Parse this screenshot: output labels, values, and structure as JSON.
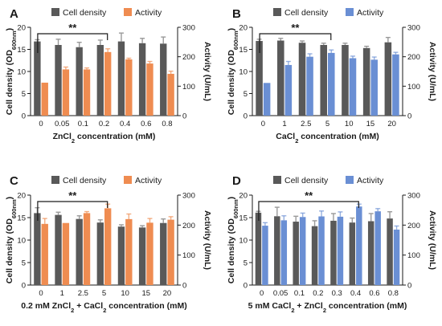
{
  "legend": {
    "cell_density": "Cell density",
    "activity": "Activity"
  },
  "colors": {
    "cell_density": "#595959",
    "activity_orange": "#ef8c51",
    "activity_blue": "#6a8fd4",
    "axis": "#1a1a1a"
  },
  "chart_data": [
    {
      "panel": "A",
      "type": "bar",
      "categories": [
        "0",
        "0.05",
        "0.1",
        "0.2",
        "0.4",
        "0.6",
        "0.8"
      ],
      "xlabel": "ZnCl2 concentration (mM)",
      "ylabel_left": "Cell density (OD600nm)",
      "ylabel_right": "Activity (U/mL)",
      "ylim_left": [
        0,
        20
      ],
      "ylim_right": [
        0,
        300
      ],
      "yticks_left": [
        "0",
        "5",
        "10",
        "15",
        "20"
      ],
      "yticks_right": [
        "0",
        "100",
        "200",
        "300"
      ],
      "activity_color": "#ef8c51",
      "significance": {
        "label": "**",
        "from": 0,
        "to": 3
      },
      "series": [
        {
          "name": "Cell density",
          "axis": "left",
          "values": [
            16.8,
            16.0,
            15.5,
            16.0,
            16.8,
            16.4,
            16.3
          ],
          "errors": [
            0.4,
            1.3,
            1.1,
            1.1,
            1.9,
            1.1,
            1.5
          ]
        },
        {
          "name": "Activity",
          "axis": "right",
          "values": [
            112,
            157,
            157,
            216,
            191,
            177,
            142
          ],
          "errors": [
            0,
            8,
            5,
            11,
            4,
            7,
            9
          ]
        }
      ]
    },
    {
      "panel": "B",
      "type": "bar",
      "categories": [
        "0",
        "1",
        "2.5",
        "5",
        "10",
        "15",
        "20"
      ],
      "xlabel": "CaCl2 concentration (mM)",
      "ylabel_left": "Cell density (OD600nm)",
      "ylabel_right": "Activity (U/mL)",
      "ylim_left": [
        0,
        20
      ],
      "ylim_right": [
        0,
        300
      ],
      "yticks_left": [
        "0",
        "5",
        "10",
        "15",
        "20"
      ],
      "yticks_right": [
        "0",
        "100",
        "200",
        "300"
      ],
      "activity_color": "#6a8fd4",
      "significance": {
        "label": "**",
        "from": 0,
        "to": 3
      },
      "series": [
        {
          "name": "Cell density",
          "axis": "left",
          "values": [
            16.9,
            17.0,
            16.5,
            16.0,
            16.0,
            15.3,
            16.6
          ],
          "errors": [
            0.4,
            0.5,
            0.4,
            0.4,
            0.4,
            0.4,
            1.1
          ]
        },
        {
          "name": "Activity",
          "axis": "right",
          "values": [
            111,
            172,
            200,
            213,
            195,
            190,
            208
          ],
          "errors": [
            0,
            12,
            10,
            10,
            7,
            9,
            7
          ]
        }
      ]
    },
    {
      "panel": "C",
      "type": "bar",
      "categories": [
        "0",
        "1",
        "2.5",
        "5",
        "10",
        "15",
        "20"
      ],
      "xlabel": "0.2 mM ZnCl2 + CaCl2 concentration (mM)",
      "ylabel_left": "Cell density (OD600nm)",
      "ylabel_right": "Activity (U/mL)",
      "ylim_left": [
        0,
        20
      ],
      "ylim_right": [
        0,
        300
      ],
      "yticks_left": [
        "0",
        "5",
        "10",
        "15",
        "20"
      ],
      "yticks_right": [
        "0",
        "100",
        "200",
        "300"
      ],
      "activity_color": "#ef8c51",
      "significance": {
        "label": "**",
        "from": 0,
        "to": 3
      },
      "series": [
        {
          "name": "Cell density",
          "axis": "left",
          "values": [
            16.0,
            15.6,
            14.7,
            13.9,
            13.0,
            12.8,
            13.8
          ],
          "errors": [
            1.2,
            0.6,
            0.7,
            0.6,
            0.4,
            0.4,
            0.9
          ]
        },
        {
          "name": "Activity",
          "axis": "right",
          "values": [
            204,
            207,
            240,
            256,
            220,
            208,
            218
          ],
          "errors": [
            18,
            0,
            5,
            14,
            17,
            14,
            10
          ]
        }
      ]
    },
    {
      "panel": "D",
      "type": "bar",
      "categories": [
        "0",
        "0.05",
        "0.1",
        "0.2",
        "0.3",
        "0.4",
        "0.6",
        "0.8"
      ],
      "xlabel": "5 mM CaCl2 + ZnCl2 concentration (mM)",
      "ylabel_left": "Cell density (OD600nm)",
      "ylabel_right": "Activity (U/mL)",
      "ylim_left": [
        0,
        20
      ],
      "ylim_right": [
        0,
        300
      ],
      "yticks_left": [
        "0",
        "5",
        "10",
        "15",
        "20"
      ],
      "yticks_right": [
        "0",
        "100",
        "200",
        "300"
      ],
      "activity_color": "#6a8fd4",
      "significance": {
        "label": "**",
        "from": 0,
        "to": 5
      },
      "series": [
        {
          "name": "Cell density",
          "axis": "left",
          "values": [
            16.1,
            15.3,
            14.1,
            13.1,
            14.3,
            13.9,
            14.2,
            14.8
          ],
          "errors": [
            0.3,
            2.0,
            1.2,
            1.2,
            1.6,
            1.0,
            1.7,
            1.5
          ]
        },
        {
          "name": "Activity",
          "axis": "right",
          "values": [
            198,
            216,
            227,
            229,
            228,
            262,
            246,
            185
          ],
          "errors": [
            10,
            15,
            13,
            18,
            16,
            8,
            9,
            12
          ]
        }
      ]
    }
  ]
}
